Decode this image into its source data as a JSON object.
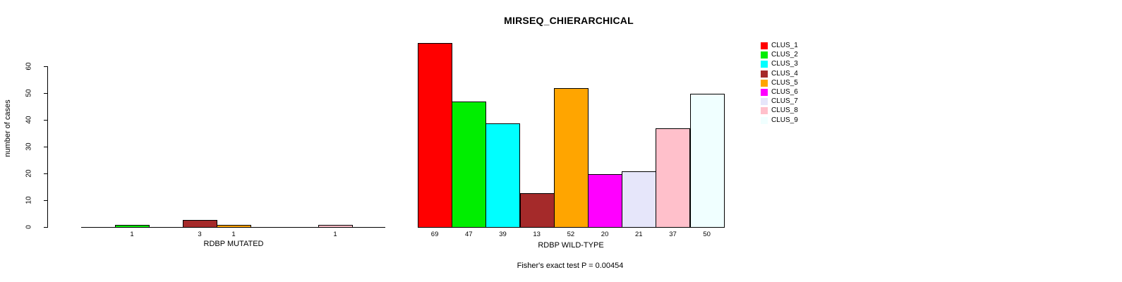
{
  "title": "MIRSEQ_CHIERARCHICAL",
  "stats_note": "Fisher's exact test P = 0.00454",
  "y_axis": {
    "label": "number of cases",
    "ticks": [
      "0",
      "10",
      "20",
      "30",
      "40",
      "50",
      "60"
    ],
    "tick_values": [
      0,
      10,
      20,
      30,
      40,
      50,
      60
    ],
    "ylim": [
      0,
      60
    ]
  },
  "legend": {
    "position": "right",
    "entries": [
      {
        "label": "CLUS_1",
        "color": "#FF0000"
      },
      {
        "label": "CLUS_2",
        "color": "#00EE00"
      },
      {
        "label": "CLUS_3",
        "color": "#00FFFF"
      },
      {
        "label": "CLUS_4",
        "color": "#A52A2A"
      },
      {
        "label": "CLUS_5",
        "color": "#FFA500"
      },
      {
        "label": "CLUS_6",
        "color": "#FF00FF"
      },
      {
        "label": "CLUS_7",
        "color": "#E6E6FA"
      },
      {
        "label": "CLUS_8",
        "color": "#FFC0CB"
      },
      {
        "label": "CLUS_9",
        "color": "#F0FFFF"
      }
    ]
  },
  "chart_data": [
    {
      "type": "bar",
      "xlabel": "RDBP MUTATED",
      "categories": [
        "CLUS_1",
        "CLUS_2",
        "CLUS_3",
        "CLUS_4",
        "CLUS_5",
        "CLUS_6",
        "CLUS_7",
        "CLUS_8",
        "CLUS_9"
      ],
      "values": [
        0,
        1,
        0,
        3,
        1,
        0,
        0,
        1,
        0
      ],
      "bar_labels": [
        "",
        "1",
        "",
        "3",
        "1",
        "",
        "",
        "1",
        ""
      ],
      "ylim": [
        0,
        60
      ],
      "grid": false
    },
    {
      "type": "bar",
      "xlabel": "RDBP WILD-TYPE",
      "categories": [
        "CLUS_1",
        "CLUS_2",
        "CLUS_3",
        "CLUS_4",
        "CLUS_5",
        "CLUS_6",
        "CLUS_7",
        "CLUS_8",
        "CLUS_9"
      ],
      "values": [
        69,
        47,
        39,
        13,
        52,
        20,
        21,
        37,
        50
      ],
      "bar_labels": [
        "69",
        "47",
        "39",
        "13",
        "52",
        "20",
        "21",
        "37",
        "50"
      ],
      "ylim": [
        0,
        60
      ],
      "grid": false
    }
  ]
}
